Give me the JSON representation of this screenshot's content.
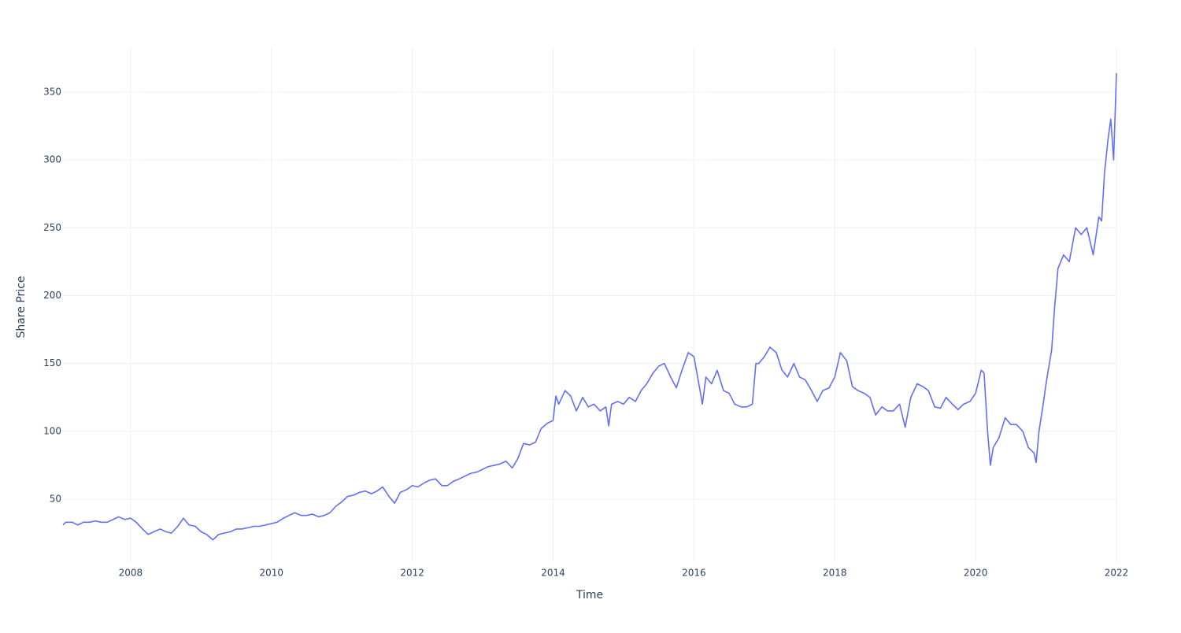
{
  "chart_data": {
    "type": "line",
    "x_label": "Time",
    "y_label": "Share Price",
    "color": "#636efa",
    "grid": true,
    "xlim": [
      2007.04,
      2022.0
    ],
    "xticks": [
      2008,
      2010,
      2012,
      2014,
      2016,
      2018,
      2020,
      2022
    ],
    "ylim": [
      3.6,
      383
    ],
    "yticks": [
      50,
      100,
      150,
      200,
      250,
      300,
      350
    ],
    "x": [
      2007.04,
      2007.08,
      2007.17,
      2007.25,
      2007.33,
      2007.42,
      2007.5,
      2007.58,
      2007.67,
      2007.75,
      2007.83,
      2007.92,
      2008.0,
      2008.08,
      2008.17,
      2008.25,
      2008.33,
      2008.42,
      2008.5,
      2008.58,
      2008.67,
      2008.75,
      2008.83,
      2008.92,
      2009.0,
      2009.08,
      2009.17,
      2009.25,
      2009.33,
      2009.42,
      2009.5,
      2009.58,
      2009.67,
      2009.75,
      2009.83,
      2009.92,
      2010.0,
      2010.08,
      2010.17,
      2010.25,
      2010.33,
      2010.42,
      2010.5,
      2010.58,
      2010.67,
      2010.75,
      2010.83,
      2010.92,
      2011.0,
      2011.08,
      2011.17,
      2011.25,
      2011.33,
      2011.42,
      2011.5,
      2011.58,
      2011.67,
      2011.75,
      2011.83,
      2011.92,
      2012.0,
      2012.08,
      2012.17,
      2012.25,
      2012.33,
      2012.42,
      2012.5,
      2012.58,
      2012.67,
      2012.75,
      2012.83,
      2012.92,
      2013.0,
      2013.08,
      2013.17,
      2013.25,
      2013.33,
      2013.42,
      2013.5,
      2013.58,
      2013.67,
      2013.75,
      2013.83,
      2013.92,
      2014.0,
      2014.04,
      2014.08,
      2014.17,
      2014.25,
      2014.33,
      2014.42,
      2014.5,
      2014.58,
      2014.67,
      2014.75,
      2014.79,
      2014.83,
      2014.92,
      2015.0,
      2015.08,
      2015.17,
      2015.25,
      2015.33,
      2015.42,
      2015.5,
      2015.58,
      2015.67,
      2015.75,
      2015.83,
      2015.92,
      2016.0,
      2016.08,
      2016.12,
      2016.17,
      2016.25,
      2016.33,
      2016.42,
      2016.5,
      2016.58,
      2016.67,
      2016.75,
      2016.83,
      2016.88,
      2016.92,
      2017.0,
      2017.08,
      2017.17,
      2017.25,
      2017.33,
      2017.42,
      2017.5,
      2017.58,
      2017.67,
      2017.75,
      2017.83,
      2017.92,
      2018.0,
      2018.08,
      2018.17,
      2018.25,
      2018.33,
      2018.42,
      2018.5,
      2018.58,
      2018.67,
      2018.75,
      2018.83,
      2018.92,
      2019.0,
      2019.08,
      2019.17,
      2019.25,
      2019.33,
      2019.42,
      2019.5,
      2019.58,
      2019.67,
      2019.75,
      2019.83,
      2019.92,
      2020.0,
      2020.08,
      2020.12,
      2020.17,
      2020.21,
      2020.25,
      2020.33,
      2020.42,
      2020.5,
      2020.58,
      2020.67,
      2020.75,
      2020.83,
      2020.86,
      2020.9,
      2020.96,
      2021.0,
      2021.08,
      2021.12,
      2021.17,
      2021.25,
      2021.33,
      2021.42,
      2021.5,
      2021.58,
      2021.67,
      2021.75,
      2021.79,
      2021.83,
      2021.88,
      2021.92,
      2021.96,
      2022.0
    ],
    "values": [
      31,
      33,
      33,
      31,
      33,
      33,
      34,
      33,
      33,
      35,
      37,
      35,
      36,
      33,
      28,
      24,
      26,
      28,
      26,
      25,
      30,
      36,
      31,
      30,
      26,
      24,
      20,
      24,
      25,
      26,
      28,
      28,
      29,
      30,
      30,
      31,
      32,
      33,
      36,
      38,
      40,
      38,
      38,
      39,
      37,
      38,
      40,
      45,
      48,
      52,
      53,
      55,
      56,
      54,
      56,
      59,
      52,
      47,
      55,
      57,
      60,
      59,
      62,
      64,
      65,
      60,
      60,
      63,
      65,
      67,
      69,
      70,
      72,
      74,
      75,
      76,
      78,
      73,
      80,
      91,
      90,
      92,
      102,
      106,
      108,
      126,
      120,
      130,
      126,
      115,
      125,
      118,
      120,
      115,
      118,
      104,
      120,
      122,
      120,
      125,
      122,
      130,
      135,
      143,
      148,
      150,
      140,
      132,
      145,
      158,
      155,
      132,
      120,
      140,
      135,
      145,
      130,
      128,
      120,
      118,
      118,
      120,
      150,
      150,
      155,
      162,
      158,
      145,
      140,
      150,
      140,
      138,
      130,
      122,
      130,
      132,
      140,
      158,
      152,
      133,
      130,
      128,
      125,
      112,
      118,
      115,
      115,
      120,
      103,
      125,
      135,
      133,
      130,
      118,
      117,
      125,
      120,
      116,
      120,
      122,
      128,
      145,
      143,
      100,
      75,
      88,
      95,
      110,
      105,
      105,
      100,
      88,
      84,
      77,
      100,
      120,
      135,
      160,
      190,
      220,
      230,
      225,
      250,
      245,
      250,
      230,
      258,
      255,
      290,
      315,
      330,
      300,
      364
    ]
  }
}
